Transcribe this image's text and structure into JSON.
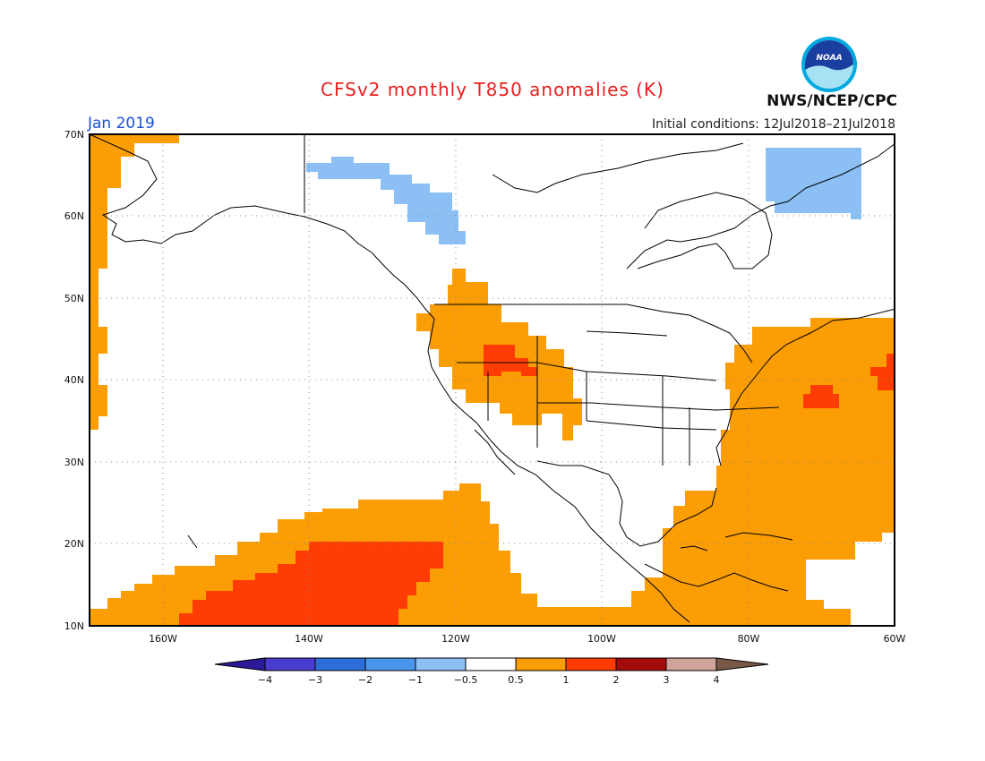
{
  "header": {
    "title": "CFSv2 monthly T850 anomalies (K)",
    "agency": "NWS/NCEP/CPC",
    "logo_text": "NOAA",
    "valid_period": "Jan 2019",
    "initial_conditions": "Initial conditions: 12Jul2018–21Jul2018"
  },
  "map": {
    "lat_labels": [
      "70N",
      "60N",
      "50N",
      "40N",
      "30N",
      "20N",
      "10N"
    ],
    "lon_labels": [
      "160W",
      "140W",
      "120W",
      "100W",
      "80W",
      "60W"
    ],
    "lat_range": [
      10,
      70
    ],
    "lon_range": [
      -170,
      -60
    ],
    "grid_lines": "dotted"
  },
  "colorbar": {
    "labels": [
      "−4",
      "−3",
      "−2",
      "−1",
      "−0.5",
      "0.5",
      "1",
      "2",
      "3",
      "4"
    ],
    "colors": [
      "#2a1a99",
      "#4a3ccf",
      "#2e6ed8",
      "#4a96ec",
      "#8cc0f5",
      "#ffffff",
      "#fb9d04",
      "#fe3c04",
      "#a40c0c",
      "#cea49a",
      "#7a5848"
    ]
  },
  "colors": {
    "title": "#e8201e",
    "period": "#1a4fd6",
    "warm_1": "#fb9d04",
    "warm_2": "#fe3c04",
    "cool_1": "#8cc0f5",
    "cool_2": "#6a9fe8"
  }
}
